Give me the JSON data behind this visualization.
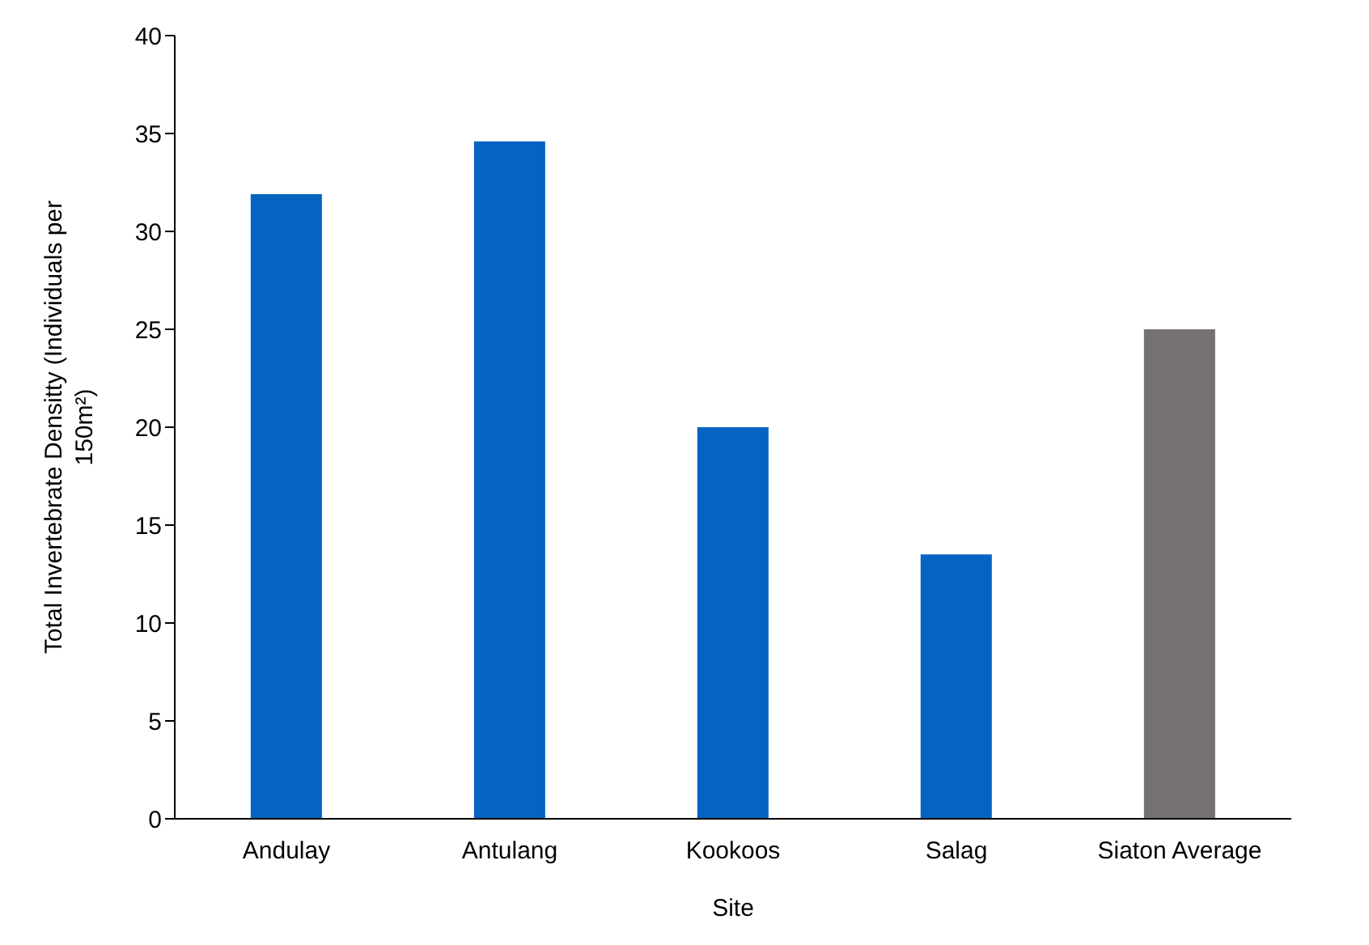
{
  "chart_data": {
    "type": "bar",
    "xlabel": "Site",
    "ylabel": "Total Invertebrate Densitty (Individuals per 150m²)",
    "categories": [
      "Andulay",
      "Antulang",
      "Kookoos",
      "Salag",
      "Siaton Average"
    ],
    "values": [
      31.9,
      34.6,
      20.0,
      13.5,
      25.0
    ],
    "colors": [
      "#0563c1",
      "#0563c1",
      "#0563c1",
      "#0563c1",
      "#767171"
    ],
    "ylim": [
      0,
      40
    ],
    "yticks": [
      0,
      5,
      10,
      15,
      20,
      25,
      30,
      35,
      40
    ],
    "grid": false
  }
}
